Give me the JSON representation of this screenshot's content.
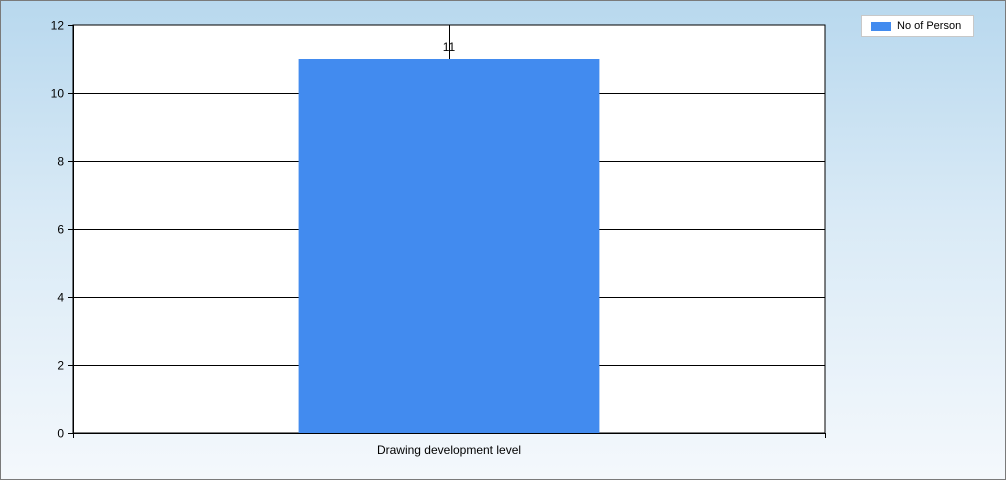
{
  "chart_data": {
    "type": "bar",
    "categories": [
      "Drawing development level"
    ],
    "series": [
      {
        "name": "No of Person",
        "values": [
          11
        ],
        "color": "#428bef"
      }
    ],
    "data_labels": [
      "11"
    ],
    "ylim": [
      0,
      12
    ],
    "yticks": [
      0,
      2,
      4,
      6,
      8,
      10,
      12
    ],
    "grid": true,
    "legend_position": "top-right",
    "title": "",
    "xlabel": "",
    "ylabel": ""
  }
}
